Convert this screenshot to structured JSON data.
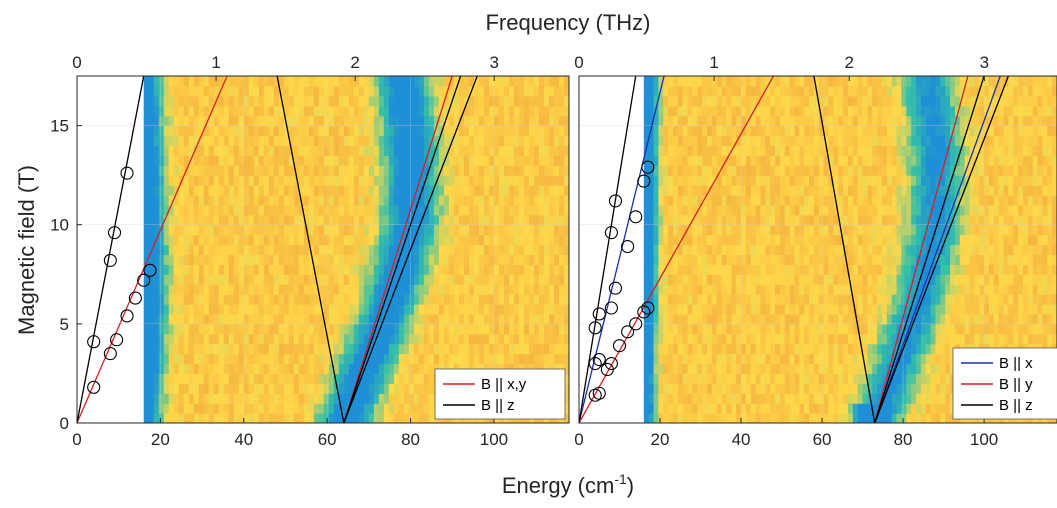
{
  "labels": {
    "top_axis": "Frequency (THz)",
    "bottom_axis": "Energy (cm",
    "bottom_axis_sup": "-1",
    "bottom_axis_end": ")",
    "left_axis": "Magnetic field  (T)"
  },
  "colors": {
    "cmap_low": "#1f8fd6",
    "cmap_mid": "#35c0a8",
    "cmap_high": "#ffd94a",
    "cmap_top": "#f0a33c",
    "red": "#d62020",
    "black": "#000000",
    "blue": "#1a2fb0",
    "grid": "#d0d0d0",
    "frame": "#262626"
  },
  "chart_data": [
    {
      "type": "heatmap",
      "panel": "left",
      "xlim": [
        0,
        118
      ],
      "ylim": [
        0,
        17.5
      ],
      "x_ticks": [
        "0",
        "20",
        "40",
        "60",
        "80",
        "100"
      ],
      "x_tick_values": [
        0,
        20,
        40,
        60,
        80,
        100
      ],
      "y_ticks": [
        "0",
        "5",
        "10",
        "15"
      ],
      "y_tick_values": [
        0,
        5,
        10,
        15
      ],
      "top_ticks": [
        "0",
        "1",
        "2",
        "3"
      ],
      "top_tick_values": [
        0,
        1,
        2,
        3
      ],
      "heatmap_x_start": 16,
      "minima": [
        {
          "points": [
            [
              16,
              0
            ],
            [
              17.5,
              6
            ],
            [
              17,
              12
            ],
            [
              16,
              17.5
            ]
          ],
          "width": 4,
          "depth": 1.0
        },
        {
          "points": [
            [
              64,
              0
            ],
            [
              75,
              6
            ],
            [
              80,
              10
            ],
            [
              80,
              14
            ],
            [
              78,
              17.5
            ]
          ],
          "width": 6,
          "depth": 1.0
        }
      ],
      "series": [
        {
          "name": "B || x,y",
          "color": "red",
          "lines": [
            [
              [
                0,
                0
              ],
              [
                36,
                17.5
              ]
            ],
            [
              [
                64,
                0
              ],
              [
                90,
                17.5
              ]
            ]
          ]
        },
        {
          "name": "B || z",
          "color": "black",
          "lines": [
            [
              [
                0,
                0
              ],
              [
                16,
                17.5
              ]
            ],
            [
              [
                48,
                17.5
              ],
              [
                64,
                0
              ]
            ],
            [
              [
                64,
                0
              ],
              [
                96,
                17.5
              ]
            ],
            [
              [
                64,
                0
              ],
              [
                92,
                17.5
              ]
            ]
          ]
        }
      ],
      "circles": [
        [
          4,
          1.8
        ],
        [
          4,
          4.1
        ],
        [
          8,
          3.5
        ],
        [
          9.5,
          4.2
        ],
        [
          12,
          5.4
        ],
        [
          14,
          6.3
        ],
        [
          16,
          7.2
        ],
        [
          17.5,
          7.7
        ],
        [
          8,
          8.2
        ],
        [
          9,
          9.6
        ],
        [
          12,
          12.6
        ]
      ],
      "legend": [
        "B || x,y",
        "B || z"
      ],
      "legend_position": "bottom-right"
    },
    {
      "type": "heatmap",
      "panel": "right",
      "xlim": [
        0,
        118
      ],
      "ylim": [
        0,
        17.5
      ],
      "x_ticks": [
        "0",
        "20",
        "40",
        "60",
        "80",
        "100"
      ],
      "x_tick_values": [
        0,
        20,
        40,
        60,
        80,
        100
      ],
      "y_ticks": [],
      "top_ticks": [
        "0",
        "1",
        "2",
        "3"
      ],
      "top_tick_values": [
        0,
        1,
        2,
        3
      ],
      "heatmap_x_start": 16,
      "minima": [
        {
          "points": [
            [
              16,
              0
            ],
            [
              17,
              8
            ],
            [
              17,
              17.5
            ]
          ],
          "width": 2.5,
          "depth": 0.9
        },
        {
          "points": [
            [
              73,
              0
            ],
            [
              84,
              6
            ],
            [
              88,
              10
            ],
            [
              88,
              14
            ],
            [
              86,
              17.5
            ]
          ],
          "width": 6,
          "depth": 0.8
        },
        {
          "points": [
            [
              73,
              0
            ],
            [
              71,
              0.8
            ],
            [
              75,
              0.8
            ]
          ],
          "width": 3,
          "depth": 1.0
        }
      ],
      "series": [
        {
          "name": "B || x",
          "color": "blue",
          "lines": [
            [
              [
                0,
                0
              ],
              [
                21,
                17.5
              ]
            ],
            [
              [
                73,
                0
              ],
              [
                104,
                17.5
              ]
            ]
          ]
        },
        {
          "name": "B || y",
          "color": "red",
          "lines": [
            [
              [
                0,
                0
              ],
              [
                48,
                17.5
              ]
            ],
            [
              [
                73,
                0
              ],
              [
                96,
                17.5
              ]
            ]
          ]
        },
        {
          "name": "B || z",
          "color": "black",
          "lines": [
            [
              [
                0,
                0
              ],
              [
                14,
                17.5
              ]
            ],
            [
              [
                58,
                17.5
              ],
              [
                73,
                0
              ]
            ],
            [
              [
                73,
                0
              ],
              [
                100,
                17.5
              ]
            ],
            [
              [
                73,
                0
              ],
              [
                106,
                17.5
              ]
            ]
          ]
        }
      ],
      "circles": [
        [
          4,
          1.4
        ],
        [
          5,
          1.5
        ],
        [
          4,
          3.0
        ],
        [
          5,
          3.2
        ],
        [
          7,
          2.7
        ],
        [
          8,
          3.0
        ],
        [
          10,
          3.9
        ],
        [
          12,
          4.6
        ],
        [
          14,
          5.0
        ],
        [
          16,
          5.6
        ],
        [
          17,
          5.8
        ],
        [
          4,
          4.8
        ],
        [
          5,
          5.5
        ],
        [
          8,
          5.8
        ],
        [
          9,
          6.8
        ],
        [
          12,
          8.9
        ],
        [
          8,
          9.6
        ],
        [
          14,
          10.4
        ],
        [
          9,
          11.2
        ],
        [
          16,
          12.2
        ],
        [
          17,
          12.9
        ]
      ],
      "legend": [
        "B || x",
        "B || y",
        "B || z"
      ],
      "legend_position": "bottom-right"
    }
  ]
}
